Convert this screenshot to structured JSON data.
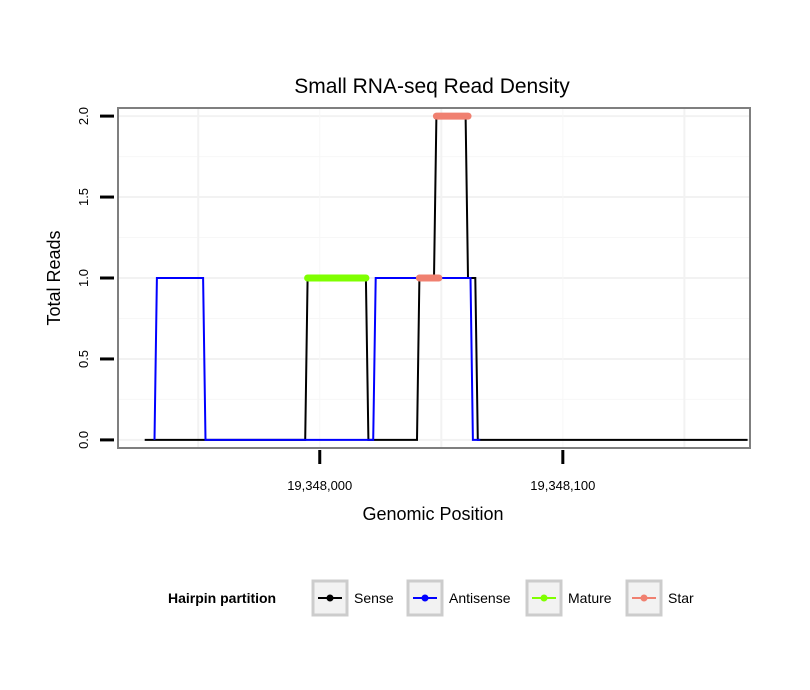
{
  "chart_data": {
    "type": "line",
    "title": "Small RNA-seq Read Density",
    "xlabel": "Genomic Position",
    "ylabel": "Total Reads",
    "xlim": [
      19347917,
      19348177
    ],
    "ylim": [
      -0.05,
      2.05
    ],
    "x_ticks": [
      19348000,
      19348100
    ],
    "x_tick_labels": [
      "19,348,000",
      "19,348,100"
    ],
    "y_ticks": [
      0.0,
      0.5,
      1.0,
      1.5,
      2.0
    ],
    "y_tick_labels": [
      "0.0",
      "0.5",
      "1.0",
      "1.5",
      "2.0"
    ],
    "grid": true,
    "legend_title": "Hairpin partition",
    "legend_position": "bottom",
    "series": [
      {
        "name": "Sense",
        "color": "#000000",
        "kind": "line",
        "x": [
          19347928,
          19347994,
          19347995,
          19348019,
          19348020,
          19348040,
          19348041,
          19348047,
          19348048,
          19348060,
          19348061,
          19348064,
          19348065,
          19348176
        ],
        "y": [
          0,
          0,
          1,
          1,
          0,
          0,
          1,
          1,
          2,
          2,
          1,
          1,
          0,
          0
        ]
      },
      {
        "name": "Antisense",
        "color": "#0000ff",
        "kind": "line",
        "x": [
          19347932,
          19347933,
          19347952,
          19347953,
          19348022,
          19348023,
          19348062,
          19348063,
          19348066
        ],
        "y": [
          0,
          1,
          1,
          0,
          0,
          1,
          1,
          0,
          0
        ]
      },
      {
        "name": "Mature",
        "color": "#7fff00",
        "kind": "segment",
        "x": [
          19347995,
          19348019
        ],
        "y": [
          1,
          1
        ]
      },
      {
        "name": "Star",
        "color": "#f08070",
        "kind": "segment",
        "segments": [
          {
            "x": [
              19348041,
              19348049
            ],
            "y": [
              1,
              1
            ]
          },
          {
            "x": [
              19348048,
              19348061
            ],
            "y": [
              2,
              2
            ]
          }
        ]
      }
    ]
  }
}
